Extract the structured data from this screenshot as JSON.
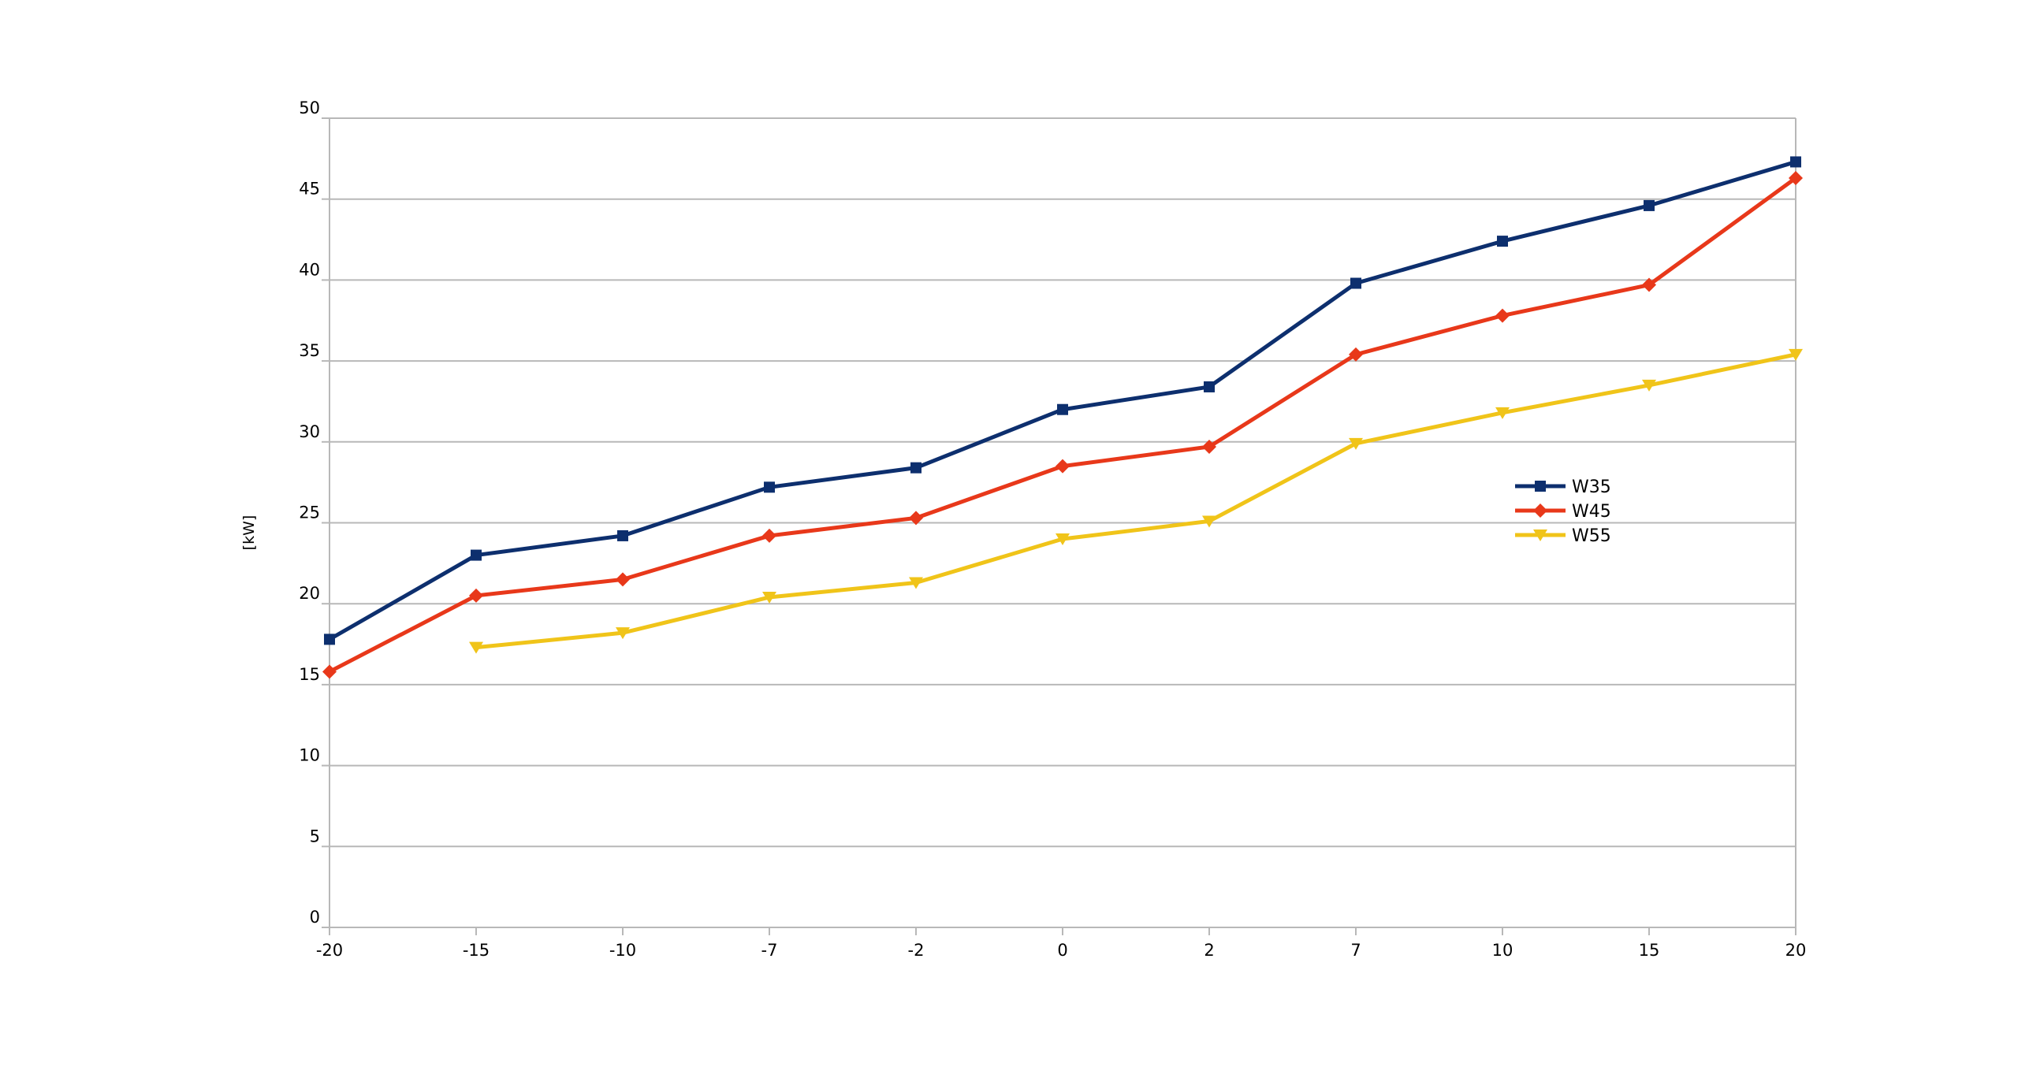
{
  "chart_data": {
    "type": "line",
    "title": "",
    "xlabel": "",
    "ylabel": "[kW]",
    "categories": [
      "-20",
      "-15",
      "-10",
      "-7",
      "-2",
      "0",
      "2",
      "7",
      "10",
      "15",
      "20"
    ],
    "ylim": [
      0,
      50
    ],
    "yticks": [
      0,
      5,
      10,
      15,
      20,
      25,
      30,
      35,
      40,
      45,
      50
    ],
    "grid": true,
    "legend_position": "right",
    "series": [
      {
        "name": "W35",
        "color": "#0d2f6e",
        "marker": "square",
        "values": [
          17.8,
          23.0,
          24.2,
          27.2,
          28.4,
          32.0,
          33.4,
          39.8,
          42.4,
          44.6,
          47.3
        ]
      },
      {
        "name": "W45",
        "color": "#e8381a",
        "marker": "diamond",
        "values": [
          15.8,
          20.5,
          21.5,
          24.2,
          25.3,
          28.5,
          29.7,
          35.4,
          37.8,
          39.7,
          46.3
        ]
      },
      {
        "name": "W55",
        "color": "#f0c419",
        "marker": "triangle-down",
        "values": [
          null,
          17.3,
          18.2,
          20.4,
          21.3,
          24.0,
          25.1,
          29.9,
          31.8,
          33.5,
          35.4
        ]
      }
    ]
  }
}
